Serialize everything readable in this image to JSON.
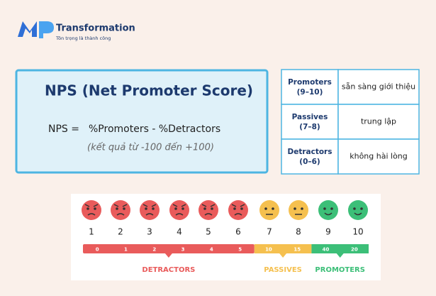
{
  "logo": {
    "name": "Transformation",
    "tagline": "Tôn trọng là thành công"
  },
  "definition": {
    "title": "NPS (Net Promoter Score)",
    "formula_left": "NPS =",
    "formula_right": "%Promoters - %Detractors",
    "note": "(kết quả từ -100 đến +100)"
  },
  "table": {
    "rows": [
      {
        "group": "Promoters",
        "range": "(9–10)",
        "meaning": "sẵn sàng giới thiệu"
      },
      {
        "group": "Passives",
        "range": "(7–8)",
        "meaning": "trung lập"
      },
      {
        "group": "Detractors",
        "range": "(0–6)",
        "meaning": "không hài lòng"
      }
    ]
  },
  "scale": {
    "scores": [
      1,
      2,
      3,
      4,
      5,
      6,
      7,
      8,
      9,
      10
    ],
    "bar_labels": [
      0,
      1,
      2,
      3,
      4,
      5,
      10,
      15,
      40,
      20
    ],
    "groups": [
      "DETRACTORS",
      "PASSIVES",
      "PROMOTERS"
    ]
  }
}
